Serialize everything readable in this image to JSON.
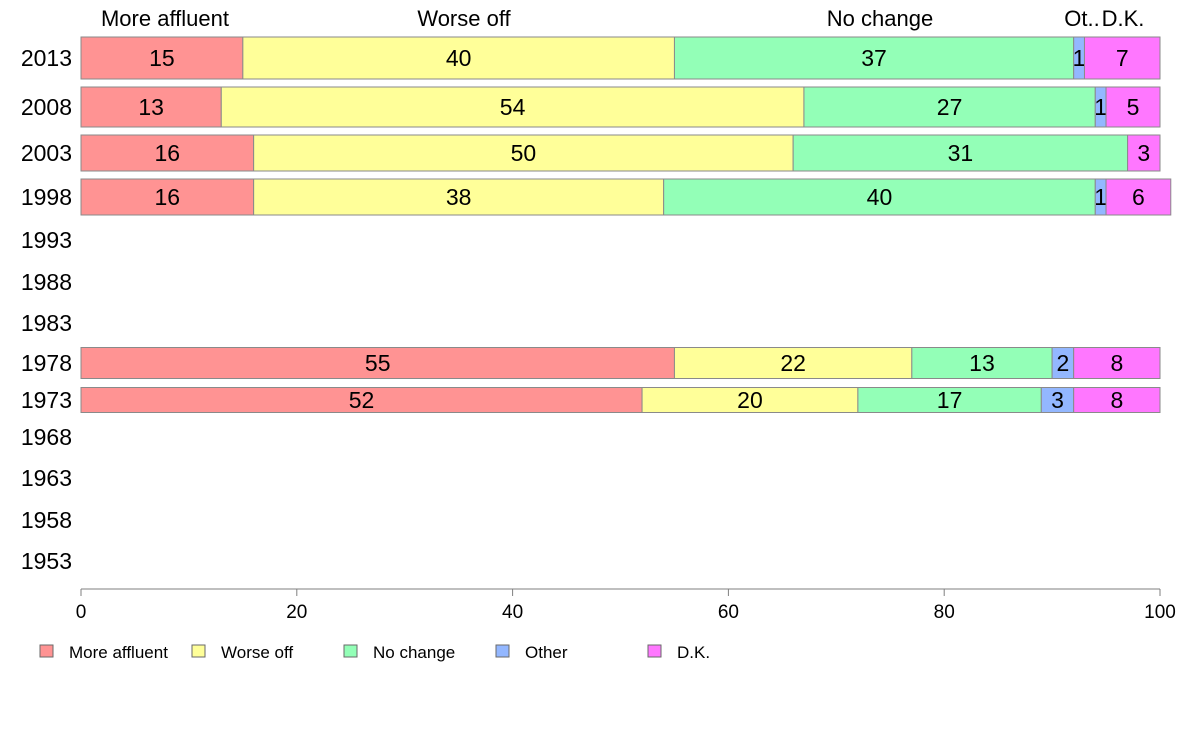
{
  "chart_data": {
    "type": "bar",
    "orientation": "horizontal",
    "stacked": true,
    "title": "",
    "xlabel": "",
    "ylabel": "",
    "xlim": [
      0,
      100
    ],
    "x_ticks": [
      0,
      20,
      40,
      60,
      80,
      100
    ],
    "grid": false,
    "legend_position": "bottom",
    "categories": [
      "2013",
      "2008",
      "2003",
      "1998",
      "1993",
      "1988",
      "1983",
      "1978",
      "1973",
      "1968",
      "1963",
      "1958",
      "1953"
    ],
    "column_headers": [
      "More affluent",
      "Worse off",
      "No change",
      "Ot..",
      "D.K."
    ],
    "series": [
      {
        "name": "More affluent",
        "color": "#ff9393",
        "values": [
          15,
          13,
          16,
          16,
          null,
          null,
          null,
          55,
          52,
          null,
          null,
          null,
          null
        ]
      },
      {
        "name": "Worse off",
        "color": "#ffff99",
        "values": [
          40,
          54,
          50,
          38,
          null,
          null,
          null,
          22,
          20,
          null,
          null,
          null,
          null
        ]
      },
      {
        "name": "No change",
        "color": "#93ffb7",
        "values": [
          37,
          27,
          31,
          40,
          null,
          null,
          null,
          13,
          17,
          null,
          null,
          null,
          null
        ]
      },
      {
        "name": "Other",
        "color": "#93b7ff",
        "values": [
          1,
          1,
          0,
          1,
          null,
          null,
          null,
          2,
          3,
          null,
          null,
          null,
          null
        ]
      },
      {
        "name": "D.K.",
        "color": "#ff77ff",
        "values": [
          7,
          5,
          3,
          6,
          null,
          null,
          null,
          8,
          8,
          null,
          null,
          null,
          null
        ]
      }
    ]
  }
}
